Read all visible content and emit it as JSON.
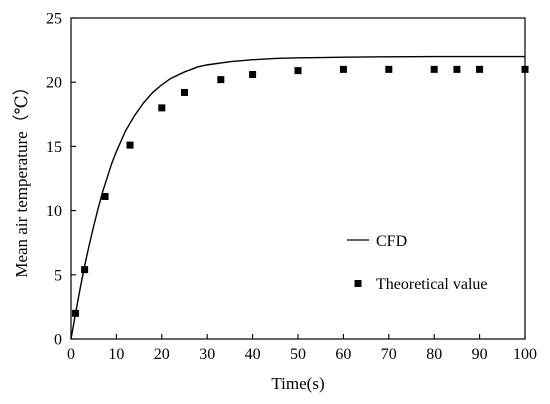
{
  "chart_data": {
    "type": "line",
    "xlabel": "Time(s)",
    "ylabel": "Mean air temperature（℃）",
    "xlim": [
      0,
      100
    ],
    "ylim": [
      0,
      25
    ],
    "x_ticks": [
      0,
      10,
      20,
      30,
      40,
      50,
      60,
      70,
      80,
      90,
      100
    ],
    "y_ticks": [
      0,
      5,
      10,
      15,
      20,
      25
    ],
    "grid": false,
    "legend_position": "bottom-right",
    "series": [
      {
        "name": "CFD",
        "type": "line",
        "color": "#000000",
        "x": [
          0,
          1,
          2,
          3,
          4,
          5,
          6,
          7,
          8,
          9,
          10,
          12,
          14,
          16,
          18,
          20,
          22,
          25,
          28,
          30,
          35,
          40,
          45,
          50,
          55,
          60,
          70,
          80,
          90,
          100
        ],
        "y": [
          0,
          2.0,
          3.9,
          5.7,
          7.3,
          8.8,
          10.2,
          11.5,
          12.6,
          13.7,
          14.6,
          16.2,
          17.4,
          18.4,
          19.2,
          19.8,
          20.3,
          20.8,
          21.2,
          21.35,
          21.6,
          21.75,
          21.85,
          21.9,
          21.92,
          21.95,
          21.98,
          22.0,
          22.0,
          22.0
        ]
      },
      {
        "name": "Theoretical value",
        "type": "scatter",
        "marker": "square",
        "color": "#000000",
        "x": [
          1,
          3,
          7.5,
          13,
          20,
          25,
          33,
          40,
          50,
          60,
          70,
          80,
          85,
          90,
          100
        ],
        "y": [
          2.0,
          5.4,
          11.1,
          15.1,
          18.0,
          19.2,
          20.2,
          20.6,
          20.9,
          21.0,
          21.0,
          21.0,
          21.0,
          21.0,
          21.0
        ]
      }
    ]
  }
}
